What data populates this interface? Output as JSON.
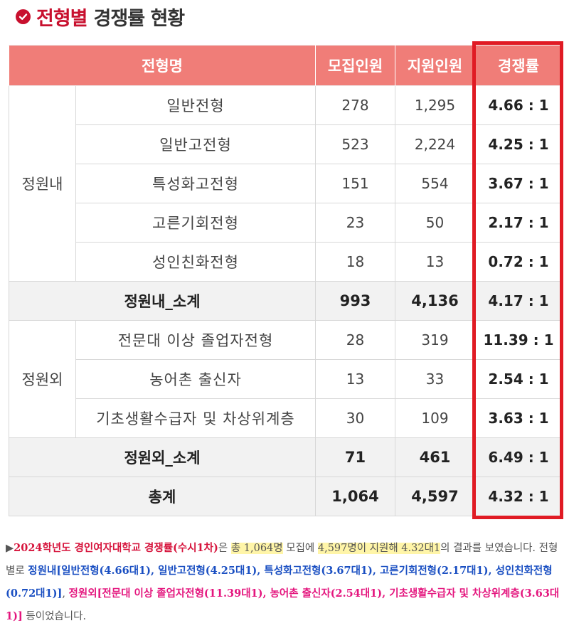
{
  "heading": {
    "accent": "전형별",
    "rest": "경쟁률 현황"
  },
  "table": {
    "headers": [
      "전형명",
      "모집인원",
      "지원인원",
      "경쟁률"
    ],
    "groups": [
      {
        "label": "정원내",
        "rows": [
          {
            "name": "일반전형",
            "recruit": "278",
            "applicants": "1,295",
            "rate": "4.66 : 1"
          },
          {
            "name": "일반고전형",
            "recruit": "523",
            "applicants": "2,224",
            "rate": "4.25 : 1"
          },
          {
            "name": "특성화고전형",
            "recruit": "151",
            "applicants": "554",
            "rate": "3.67 : 1"
          },
          {
            "name": "고른기회전형",
            "recruit": "23",
            "applicants": "50",
            "rate": "2.17 : 1"
          },
          {
            "name": "성인친화전형",
            "recruit": "18",
            "applicants": "13",
            "rate": "0.72 : 1"
          }
        ],
        "subtotal": {
          "name": "정원내_소계",
          "recruit": "993",
          "applicants": "4,136",
          "rate": "4.17 : 1"
        }
      },
      {
        "label": "정원외",
        "rows": [
          {
            "name": "전문대 이상 졸업자전형",
            "recruit": "28",
            "applicants": "319",
            "rate": "11.39 : 1"
          },
          {
            "name": "농어촌 출신자",
            "recruit": "13",
            "applicants": "33",
            "rate": "2.54 : 1"
          },
          {
            "name": "기초생활수급자 및 차상위계층",
            "recruit": "30",
            "applicants": "109",
            "rate": "3.63 : 1"
          }
        ],
        "subtotal": {
          "name": "정원외_소계",
          "recruit": "71",
          "applicants": "461",
          "rate": "6.49 : 1"
        }
      }
    ],
    "total": {
      "name": "총계",
      "recruit": "1,064",
      "applicants": "4,597",
      "rate": "4.32 : 1"
    }
  },
  "summary": {
    "arrow": "▶",
    "school": "2024학년도 경인여자대학교 경쟁률(수시1차)",
    "t1": "은 ",
    "hl1": "총 1,064명",
    "t2": " 모집에 ",
    "hl2": "4,597명이 지원해 4.32대1",
    "t3": "의 결과를 보였습니다. 전형별로 ",
    "inner": "정원내[일반전형(4.66대1), 일반고전형(4.25대1), 특성화고전형(3.67대1), 고른기회전형(2.17대1), 성인친화전형(0.72대1)]",
    "t4": ", ",
    "outer": "정원외[전문대 이상 졸업자전형(11.39대1), 농어촌 출신자(2.54대1), 기초생활수급자 및 차상위계층(3.63대1)]",
    "t5": " 등이었습니다."
  },
  "colors": {
    "accent": "#c8102e",
    "header_bg": "#f07d78",
    "highlight_border": "#e01b24",
    "subtotal_bg": "#f2f2f2"
  }
}
